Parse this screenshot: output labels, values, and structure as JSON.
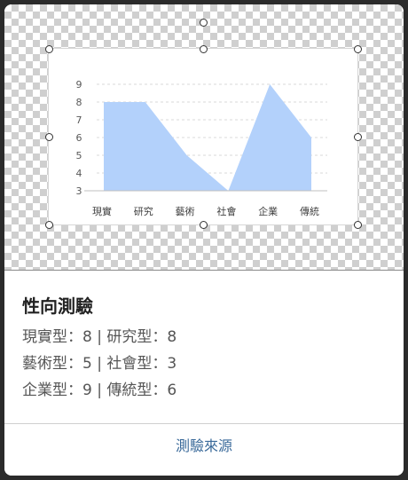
{
  "card": {
    "title": "性向測驗",
    "lines": [
      "現實型：8 | 研究型：8",
      "藝術型：5 | 社會型：3",
      "企業型：9 | 傳統型：6"
    ],
    "source_link": "測驗來源"
  },
  "chart_data": {
    "type": "area",
    "categories": [
      "現實",
      "研究",
      "藝術",
      "社會",
      "企業",
      "傳統"
    ],
    "values": [
      8,
      8,
      5,
      3,
      9,
      6
    ],
    "ylim": [
      3,
      9
    ],
    "yticks": [
      3,
      4,
      5,
      6,
      7,
      8,
      9
    ],
    "grid": true,
    "fill_color": "#b3d1fb"
  }
}
